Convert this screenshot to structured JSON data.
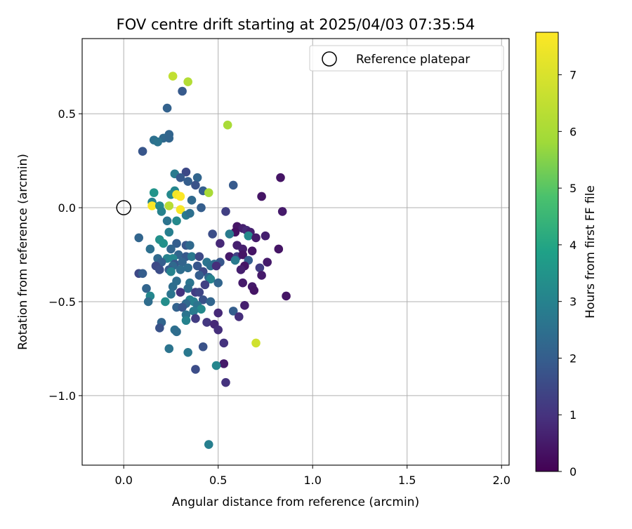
{
  "chart_data": {
    "type": "scatter",
    "title": "FOV centre drift starting at 2025/04/03 07:35:54",
    "xlabel": "Angular distance from reference (arcmin)",
    "ylabel": "Rotation from reference (arcmin)",
    "xlim": [
      -0.22,
      2.04
    ],
    "ylim": [
      -1.37,
      0.9
    ],
    "xticks": [
      0.0,
      0.5,
      1.0,
      1.5,
      2.0
    ],
    "xtick_labels": [
      "0.0",
      "0.5",
      "1.0",
      "1.5",
      "2.0"
    ],
    "yticks": [
      0.5,
      0.0,
      -0.5,
      -1.0
    ],
    "ytick_labels": [
      "0.5",
      "0.0",
      "−0.5",
      "−1.0"
    ],
    "grid": true,
    "legend": {
      "position": "top-right",
      "entries": [
        "Reference platepar"
      ]
    },
    "reference_point": {
      "x": 0.0,
      "y": 0.0
    },
    "colorbar": {
      "label": "Hours from first FF file",
      "colormap": "viridis",
      "range": [
        0,
        7.75
      ],
      "ticks": [
        0,
        1,
        2,
        3,
        4,
        5,
        6,
        7
      ],
      "tick_labels": [
        "0",
        "1",
        "2",
        "3",
        "4",
        "5",
        "6",
        "7"
      ]
    },
    "points": [
      [
        0.26,
        0.7,
        6.5
      ],
      [
        0.34,
        0.67,
        6.2
      ],
      [
        0.31,
        0.62,
        1.9
      ],
      [
        0.23,
        0.53,
        2.1
      ],
      [
        0.55,
        0.44,
        6.0
      ],
      [
        0.24,
        0.39,
        2.2
      ],
      [
        0.21,
        0.37,
        2.3
      ],
      [
        0.24,
        0.37,
        2.2
      ],
      [
        0.16,
        0.36,
        2.5
      ],
      [
        0.18,
        0.35,
        2.6
      ],
      [
        0.1,
        0.3,
        1.8
      ],
      [
        0.27,
        0.18,
        2.8
      ],
      [
        0.33,
        0.19,
        1.5
      ],
      [
        0.39,
        0.16,
        2.2
      ],
      [
        0.3,
        0.16,
        1.9
      ],
      [
        0.34,
        0.14,
        2.0
      ],
      [
        0.38,
        0.12,
        1.7
      ],
      [
        0.58,
        0.12,
        1.9
      ],
      [
        0.83,
        0.16,
        0.4
      ],
      [
        0.27,
        0.09,
        3.1
      ],
      [
        0.42,
        0.09,
        2.0
      ],
      [
        0.45,
        0.08,
        6.0
      ],
      [
        0.16,
        0.08,
        3.5
      ],
      [
        0.25,
        0.07,
        3.2
      ],
      [
        0.28,
        0.07,
        7.5
      ],
      [
        0.3,
        0.06,
        7.7
      ],
      [
        0.73,
        0.06,
        0.4
      ],
      [
        0.36,
        0.04,
        2.3
      ],
      [
        0.15,
        0.03,
        3.0
      ],
      [
        0.15,
        0.01,
        7.7
      ],
      [
        0.24,
        0.01,
        6.3
      ],
      [
        0.19,
        0.01,
        3.2
      ],
      [
        0.41,
        0.0,
        2.0
      ],
      [
        0.3,
        -0.01,
        7.6
      ],
      [
        0.2,
        -0.02,
        3.0
      ],
      [
        0.54,
        -0.02,
        1.3
      ],
      [
        0.84,
        -0.02,
        0.5
      ],
      [
        0.33,
        -0.04,
        2.8
      ],
      [
        0.35,
        -0.03,
        2.5
      ],
      [
        0.23,
        -0.07,
        2.6
      ],
      [
        0.28,
        -0.07,
        3.2
      ],
      [
        0.6,
        -0.1,
        0.4
      ],
      [
        0.63,
        -0.11,
        0.6
      ],
      [
        0.59,
        -0.13,
        0.3
      ],
      [
        0.65,
        -0.12,
        0.8
      ],
      [
        0.67,
        -0.13,
        0.6
      ],
      [
        0.56,
        -0.14,
        2.8
      ],
      [
        0.24,
        -0.13,
        2.9
      ],
      [
        0.47,
        -0.14,
        1.6
      ],
      [
        0.66,
        -0.15,
        3.2
      ],
      [
        0.7,
        -0.16,
        0.5
      ],
      [
        0.75,
        -0.15,
        0.6
      ],
      [
        0.08,
        -0.16,
        2.2
      ],
      [
        0.19,
        -0.17,
        3.4
      ],
      [
        0.21,
        -0.19,
        3.4
      ],
      [
        0.28,
        -0.19,
        2.0
      ],
      [
        0.33,
        -0.2,
        1.8
      ],
      [
        0.35,
        -0.2,
        2.3
      ],
      [
        0.51,
        -0.19,
        0.8
      ],
      [
        0.6,
        -0.2,
        0.6
      ],
      [
        0.14,
        -0.22,
        2.5
      ],
      [
        0.25,
        -0.22,
        2.2
      ],
      [
        0.63,
        -0.22,
        0.6
      ],
      [
        0.68,
        -0.23,
        0.4
      ],
      [
        0.82,
        -0.22,
        0.4
      ],
      [
        0.29,
        -0.25,
        2.2
      ],
      [
        0.33,
        -0.26,
        1.9
      ],
      [
        0.36,
        -0.26,
        2.7
      ],
      [
        0.4,
        -0.26,
        1.5
      ],
      [
        0.56,
        -0.26,
        0.5
      ],
      [
        0.6,
        -0.26,
        1.3
      ],
      [
        0.63,
        -0.25,
        0.4
      ],
      [
        0.18,
        -0.27,
        2.3
      ],
      [
        0.23,
        -0.27,
        3.0
      ],
      [
        0.26,
        -0.27,
        3.1
      ],
      [
        0.2,
        -0.29,
        2.0
      ],
      [
        0.59,
        -0.28,
        2.8
      ],
      [
        0.51,
        -0.29,
        1.8
      ],
      [
        0.27,
        -0.3,
        1.8
      ],
      [
        0.31,
        -0.29,
        2.2
      ],
      [
        0.44,
        -0.29,
        2.6
      ],
      [
        0.48,
        -0.3,
        2.4
      ],
      [
        0.66,
        -0.28,
        2.0
      ],
      [
        0.76,
        -0.29,
        0.5
      ],
      [
        0.17,
        -0.31,
        1.5
      ],
      [
        0.26,
        -0.31,
        2.3
      ],
      [
        0.39,
        -0.31,
        1.8
      ],
      [
        0.46,
        -0.31,
        2.5
      ],
      [
        0.49,
        -0.31,
        0.9
      ],
      [
        0.64,
        -0.31,
        0.4
      ],
      [
        0.72,
        -0.32,
        1.2
      ],
      [
        0.19,
        -0.33,
        1.6
      ],
      [
        0.24,
        -0.33,
        2.0
      ],
      [
        0.3,
        -0.33,
        2.4
      ],
      [
        0.34,
        -0.32,
        2.4
      ],
      [
        0.25,
        -0.34,
        3.0
      ],
      [
        0.42,
        -0.34,
        1.5
      ],
      [
        0.62,
        -0.33,
        0.6
      ],
      [
        0.08,
        -0.35,
        1.5
      ],
      [
        0.1,
        -0.35,
        2.0
      ],
      [
        0.4,
        -0.36,
        2.0
      ],
      [
        0.45,
        -0.37,
        2.3
      ],
      [
        0.46,
        -0.38,
        3.0
      ],
      [
        0.73,
        -0.36,
        0.5
      ],
      [
        0.28,
        -0.39,
        2.4
      ],
      [
        0.35,
        -0.4,
        2.6
      ],
      [
        0.5,
        -0.4,
        2.2
      ],
      [
        0.63,
        -0.4,
        0.5
      ],
      [
        0.43,
        -0.41,
        1.3
      ],
      [
        0.68,
        -0.42,
        0.5
      ],
      [
        0.26,
        -0.42,
        2.4
      ],
      [
        0.12,
        -0.43,
        2.2
      ],
      [
        0.34,
        -0.43,
        2.4
      ],
      [
        0.69,
        -0.44,
        0.4
      ],
      [
        0.3,
        -0.45,
        1.0
      ],
      [
        0.38,
        -0.45,
        1.2
      ],
      [
        0.4,
        -0.45,
        1.4
      ],
      [
        0.25,
        -0.46,
        2.6
      ],
      [
        0.14,
        -0.47,
        3.1
      ],
      [
        0.86,
        -0.47,
        0.4
      ],
      [
        0.35,
        -0.49,
        3.0
      ],
      [
        0.37,
        -0.5,
        2.9
      ],
      [
        0.42,
        -0.49,
        1.7
      ],
      [
        0.46,
        -0.5,
        2.2
      ],
      [
        0.22,
        -0.5,
        3.3
      ],
      [
        0.13,
        -0.5,
        2.4
      ],
      [
        0.33,
        -0.51,
        2.3
      ],
      [
        0.39,
        -0.52,
        2.6
      ],
      [
        0.64,
        -0.52,
        0.6
      ],
      [
        0.28,
        -0.53,
        2.1
      ],
      [
        0.31,
        -0.53,
        1.8
      ],
      [
        0.41,
        -0.54,
        3.2
      ],
      [
        0.37,
        -0.55,
        2.8
      ],
      [
        0.5,
        -0.56,
        0.8
      ],
      [
        0.58,
        -0.55,
        2.0
      ],
      [
        0.33,
        -0.57,
        2.6
      ],
      [
        0.61,
        -0.58,
        0.9
      ],
      [
        0.38,
        -0.59,
        1.2
      ],
      [
        0.33,
        -0.6,
        3.0
      ],
      [
        0.2,
        -0.61,
        2.2
      ],
      [
        0.44,
        -0.61,
        1.1
      ],
      [
        0.48,
        -0.62,
        0.8
      ],
      [
        0.19,
        -0.64,
        1.7
      ],
      [
        0.27,
        -0.65,
        2.5
      ],
      [
        0.28,
        -0.66,
        2.4
      ],
      [
        0.5,
        -0.65,
        0.9
      ],
      [
        0.7,
        -0.72,
        6.8
      ],
      [
        0.53,
        -0.72,
        1.0
      ],
      [
        0.42,
        -0.74,
        1.7
      ],
      [
        0.24,
        -0.75,
        2.6
      ],
      [
        0.34,
        -0.77,
        2.7
      ],
      [
        0.53,
        -0.83,
        0.5
      ],
      [
        0.49,
        -0.84,
        3.1
      ],
      [
        0.38,
        -0.86,
        1.6
      ],
      [
        0.54,
        -0.93,
        1.0
      ],
      [
        0.45,
        -1.26,
        2.9
      ]
    ]
  }
}
